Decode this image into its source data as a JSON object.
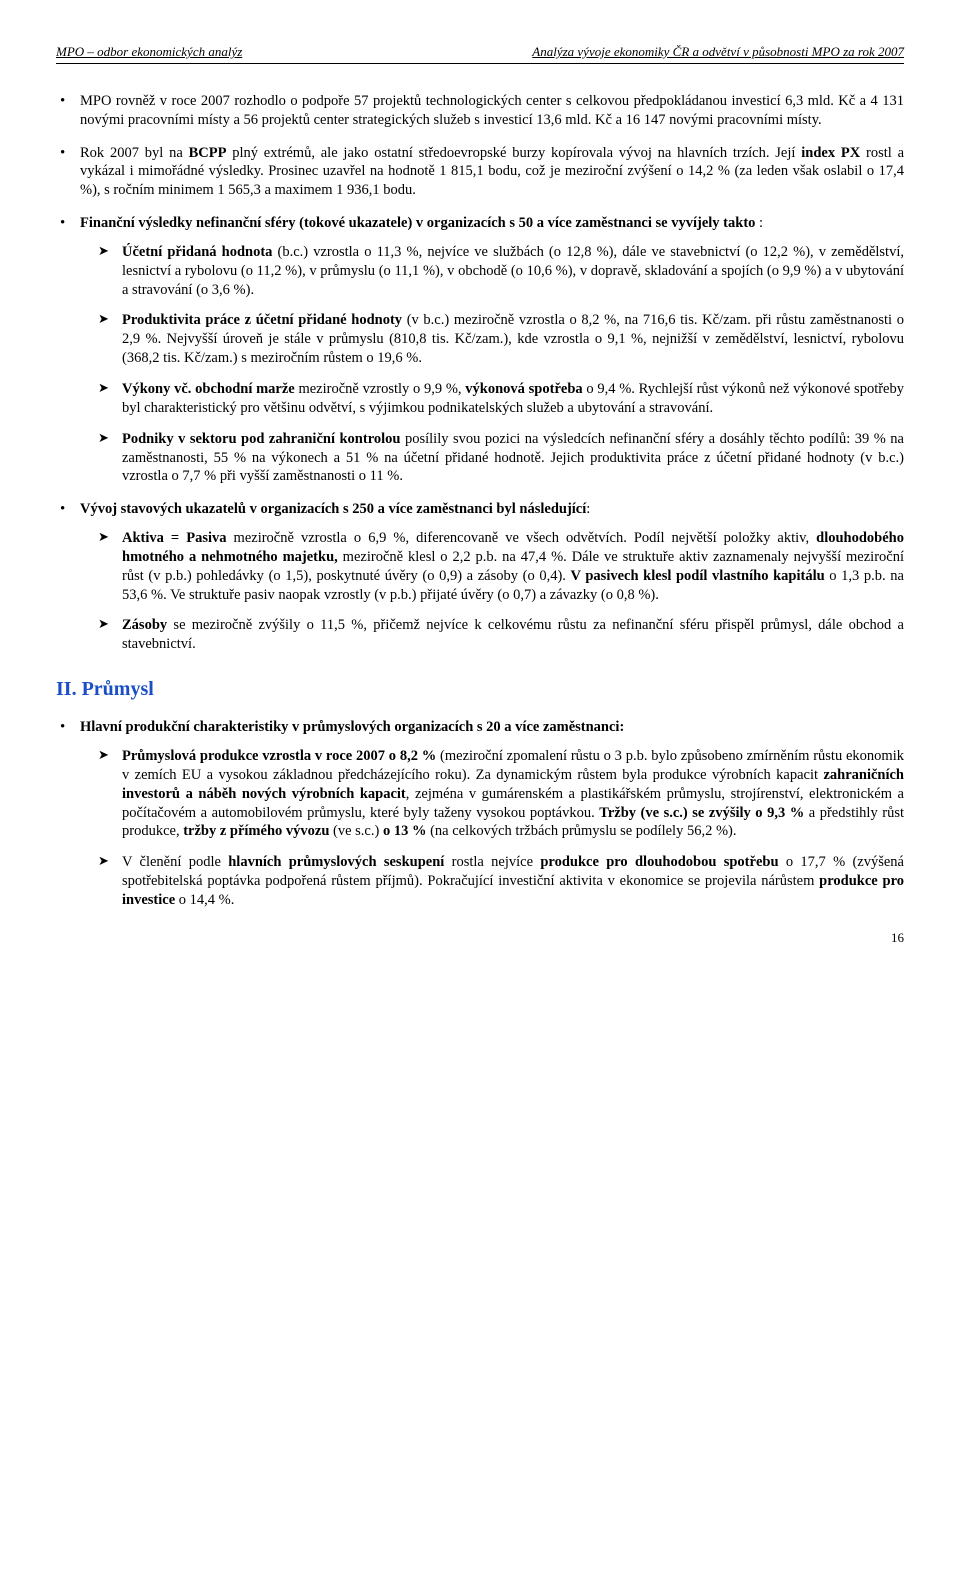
{
  "header": {
    "left": "MPO – odbor ekonomických analýz",
    "right": "Analýza vývoje ekonomiky ČR a odvětví v působnosti MPO za rok 2007"
  },
  "bullets": {
    "b1_a": "MPO rovněž v roce 2007 rozhodlo o podpoře 57 projektů technologických center s celkovou předpokládanou investicí 6,3 mld. Kč a 4 131 novými pracovními místy a 56 projektů center strategických služeb s investicí 13,6 mld. Kč a 16 147 novými pracovními místy.",
    "b2_a": "Rok 2007 byl na ",
    "b2_b": "BCPP",
    "b2_c": " plný extrémů, ale jako ostatní středoevropské burzy kopírovala vývoj na hlavních trzích. Její ",
    "b2_d": "index PX",
    "b2_e": " rostl a vykázal i mimořádné výsledky. Prosinec uzavřel na hodnotě 1 815,1 bodu, což je meziroční zvýšení o 14,2 % (za leden však oslabil o 17,4 %), s ročním minimem 1 565,3 a maximem 1 936,1 bodu.",
    "b3_a": "Finanční výsledky nefinanční sféry (tokové ukazatele) v organizacích s 50 a více zaměstnanci se vyvíjely takto",
    "b3_b": " :",
    "b3s1_a": "Účetní přidaná hodnota",
    "b3s1_b": " (b.c.) vzrostla o 11,3 %, nejvíce ve službách (o 12,8 %), dále ve stavebnictví (o 12,2 %), v zemědělství, lesnictví a rybolovu (o 11,2 %), v průmyslu (o 11,1 %), v obchodě (o 10,6 %), v dopravě, skladování a spojích (o 9,9 %) a v ubytování a stravování (o 3,6 %).",
    "b3s2_a": "Produktivita práce z účetní přidané hodnoty",
    "b3s2_b": " (v b.c.) meziročně vzrostla o 8,2 %, na 716,6 tis. Kč/zam. při růstu zaměstnanosti o 2,9 %. Nejvyšší úroveň je stále v průmyslu (810,8 tis. Kč/zam.), kde vzrostla o 9,1 %, nejnižší v zemědělství, lesnictví, rybolovu (368,2 tis. Kč/zam.) s meziročním růstem o 19,6 %.",
    "b3s3_a": "Výkony vč. obchodní marže",
    "b3s3_b": " meziročně vzrostly o 9,9 %, ",
    "b3s3_c": "výkonová spotřeba",
    "b3s3_d": " o 9,4 %. Rychlejší růst výkonů než výkonové spotřeby byl charakteristický pro většinu odvětví, s výjimkou podnikatelských služeb a ubytování a stravování.",
    "b3s4_a": "Podniky v sektoru pod zahraniční kontrolou",
    "b3s4_b": " posílily svou pozici na výsledcích nefinanční sféry a dosáhly těchto podílů: 39 % na zaměstnanosti, 55 % na výkonech a 51 % na účetní přidané hodnotě. Jejich produktivita práce z účetní přidané hodnoty (v b.c.) vzrostla o 7,7 % při vyšší zaměstnanosti o 11 %.",
    "b4_a": "Vývoj stavových ukazatelů v organizacích s 250 a více zaměstnanci byl následující",
    "b4_b": ":",
    "b4s1_a": "Aktiva = Pasiva",
    "b4s1_b": " meziročně vzrostla o 6,9 %, diferencovaně ve všech odvětvích. Podíl největší položky aktiv, ",
    "b4s1_c": "dlouhodobého hmotného a nehmotného majetku,",
    "b4s1_d": " meziročně klesl o 2,2 p.b. na 47,4 %. Dále ve struktuře aktiv zaznamenaly nejvyšší meziroční růst (v p.b.) pohledávky (o 1,5), poskytnuté úvěry (o 0,9) a zásoby (o 0,4). ",
    "b4s1_e": "V pasivech klesl podíl vlastního kapitálu",
    "b4s1_f": " o 1,3 p.b. na 53,6 %. Ve struktuře pasiv naopak vzrostly (v p.b.) přijaté úvěry (o 0,7) a závazky (o 0,8 %).",
    "b4s2_a": "Zásoby",
    "b4s2_b": " se meziročně zvýšily o 11,5 %, přičemž nejvíce k celkovému růstu za nefinanční sféru přispěl průmysl, dále obchod a stavebnictví."
  },
  "section2": {
    "title": "II. Průmysl",
    "b1_a": "Hlavní produkční charakteristiky v průmyslových organizacích s 20 a více zaměstnanci:",
    "b1s1_a": "Průmyslová produkce vzrostla v roce 2007 o 8,2 %",
    "b1s1_b": " (meziroční zpomalení růstu o 3 p.b. bylo způsobeno zmírněním růstu ekonomik v zemích EU a vysokou základnou předcházejícího roku). Za dynamickým růstem byla produkce výrobních kapacit ",
    "b1s1_c": "zahraničních investorů a náběh nových výrobních kapacit",
    "b1s1_d": ", zejména v gumárenském a plastikářském průmyslu, strojírenství, elektronickém a počítačovém a automobilovém průmyslu, které byly taženy vysokou poptávkou. ",
    "b1s1_e": "Tržby (ve s.c.) se zvýšily o 9,3 %",
    "b1s1_f": " a předstihly růst produkce, ",
    "b1s1_g": "tržby z přímého vývozu",
    "b1s1_h": " (ve s.c.) ",
    "b1s1_i": "o 13 %",
    "b1s1_j": " (na celkových tržbách průmyslu se podílely 56,2 %).",
    "b1s2_a": "V členění podle ",
    "b1s2_b": "hlavních průmyslových seskupení",
    "b1s2_c": " rostla nejvíce ",
    "b1s2_d": "produkce pro dlouhodobou spotřebu",
    "b1s2_e": " o 17,7 % (zvýšená spotřebitelská poptávka podpořená růstem příjmů). Pokračující investiční aktivita v ekonomice se projevila nárůstem ",
    "b1s2_f": "produkce pro investice",
    "b1s2_g": " o 14,4 %."
  },
  "page_number": "16"
}
